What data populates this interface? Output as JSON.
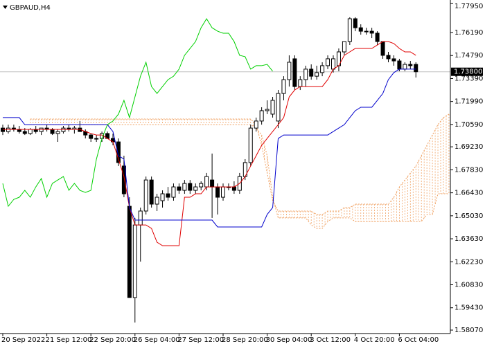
{
  "chart_data": {
    "type": "candlestick",
    "title": "GBPAUD,H4",
    "categories": [
      "20 Sep 2022",
      null,
      null,
      null,
      null,
      null,
      null,
      null,
      "21 Sep 12:00",
      null,
      null,
      null,
      null,
      null,
      null,
      null,
      "22 Sep 20:00",
      null,
      null,
      null,
      null,
      null,
      null,
      null,
      "26 Sep 04:00",
      null,
      null,
      null,
      null,
      null,
      null,
      null,
      "27 Sep 12:00",
      null,
      null,
      null,
      null,
      null,
      null,
      null,
      "28 Sep 20:00",
      null,
      null,
      null,
      null,
      null,
      null,
      null,
      "30 Sep 04:00",
      null,
      null,
      null,
      null,
      null,
      null,
      null,
      "3 Oct 12:00",
      null,
      null,
      null,
      null,
      null,
      null,
      null,
      "4 Oct 20:00",
      null,
      null,
      null,
      null,
      null,
      null,
      null,
      "6 Oct 04:00",
      null,
      null,
      null,
      null,
      null,
      null,
      null,
      null,
      null
    ],
    "open": [
      1.7037,
      1.7016,
      1.7037,
      1.7029,
      1.7016,
      1.7004,
      1.7029,
      1.7016,
      1.7037,
      1.7029,
      1.7004,
      1.7016,
      1.7037,
      1.7029,
      1.7037,
      1.7016,
      1.6995,
      1.6974,
      1.6974,
      1.7004,
      1.6974,
      1.6953,
      1.6806,
      1.6561,
      1.6005,
      1.6447,
      1.6532,
      1.6721,
      1.6574,
      1.6595,
      1.6637,
      1.6616,
      1.6679,
      1.6658,
      1.67,
      1.6658,
      1.6679,
      1.6679,
      1.6721,
      1.6679,
      1.6616,
      1.6679,
      1.6679,
      1.6658,
      1.6742,
      1.6827,
      1.7037,
      1.708,
      1.7143,
      1.7122,
      1.708,
      1.7248,
      1.7332,
      1.7459,
      1.729,
      1.7332,
      1.7396,
      1.7353,
      1.7375,
      1.7417,
      1.7396,
      1.7417,
      1.7501,
      1.7564,
      1.7703,
      1.7648,
      1.7627,
      1.7627,
      1.7615,
      1.7564,
      1.748,
      1.7459,
      1.7446,
      1.7396,
      1.7425,
      1.7425,
      null,
      null,
      null,
      null,
      null,
      null
    ],
    "high": [
      1.7058,
      1.7058,
      1.7058,
      1.705,
      1.7037,
      1.7037,
      1.705,
      1.7037,
      1.7058,
      1.7037,
      1.7029,
      1.705,
      1.7058,
      1.705,
      1.708,
      1.7029,
      1.7004,
      1.6995,
      1.7016,
      1.7016,
      1.7004,
      1.6974,
      1.6869,
      1.6616,
      1.649,
      1.6553,
      1.6742,
      1.6742,
      1.6637,
      1.6658,
      1.6679,
      1.67,
      1.67,
      1.6721,
      1.6721,
      1.67,
      1.6713,
      1.6764,
      1.6882,
      1.67,
      1.67,
      1.67,
      1.6713,
      1.6764,
      1.6848,
      1.7058,
      1.7101,
      1.7164,
      1.7206,
      1.7227,
      1.7269,
      1.7353,
      1.748,
      1.748,
      1.7353,
      1.7417,
      1.7425,
      1.7417,
      1.7438,
      1.748,
      1.748,
      1.7522,
      1.7564,
      1.7712,
      1.7712,
      1.7669,
      1.7648,
      1.7648,
      1.7627,
      1.7564,
      1.7501,
      1.748,
      1.7459,
      1.7438,
      1.7446,
      1.7438,
      null,
      null,
      null,
      null,
      null,
      null
    ],
    "low": [
      1.6995,
      1.7004,
      1.7016,
      1.7004,
      1.6995,
      1.6995,
      1.7004,
      1.6995,
      1.7016,
      1.6995,
      1.6953,
      1.7004,
      1.7016,
      1.7004,
      1.7016,
      1.6974,
      1.6953,
      1.6953,
      1.6953,
      1.6974,
      1.6932,
      1.6806,
      1.6616,
      1.6005,
      1.5853,
      1.6224,
      1.6511,
      1.6553,
      1.6532,
      1.6553,
      1.6595,
      1.6595,
      1.6637,
      1.6637,
      1.6637,
      1.6637,
      1.6658,
      1.6658,
      1.649,
      1.6511,
      1.6595,
      1.6658,
      1.6637,
      1.6637,
      1.6721,
      1.6806,
      1.7016,
      1.7058,
      1.7122,
      1.7101,
      1.7037,
      1.7206,
      1.729,
      1.7269,
      1.7269,
      1.729,
      1.7332,
      1.7332,
      1.7353,
      1.7396,
      1.7375,
      1.7383,
      1.748,
      1.7543,
      1.7627,
      1.7606,
      1.7606,
      1.7585,
      1.7543,
      1.7459,
      1.7438,
      1.7417,
      1.7383,
      1.7383,
      1.7396,
      1.7345,
      null,
      null,
      null,
      null,
      null,
      null
    ],
    "close": [
      1.7016,
      1.7037,
      1.7029,
      1.7016,
      1.7004,
      1.7029,
      1.7016,
      1.7037,
      1.7029,
      1.7004,
      1.7016,
      1.7037,
      1.7029,
      1.7037,
      1.7016,
      1.6995,
      1.6974,
      1.6974,
      1.7004,
      1.6974,
      1.6953,
      1.6827,
      1.6637,
      1.6005,
      1.6447,
      1.6532,
      1.6721,
      1.6574,
      1.6616,
      1.6637,
      1.6616,
      1.6679,
      1.6658,
      1.67,
      1.6658,
      1.6679,
      1.67,
      1.6742,
      1.6679,
      1.6616,
      1.6679,
      1.6679,
      1.6658,
      1.6742,
      1.6827,
      1.7037,
      1.708,
      1.7143,
      1.7151,
      1.7206,
      1.7248,
      1.7332,
      1.7438,
      1.729,
      1.7332,
      1.7396,
      1.7353,
      1.7375,
      1.7417,
      1.7459,
      1.7459,
      1.7501,
      1.7564,
      1.7703,
      1.7648,
      1.7627,
      1.7627,
      1.7615,
      1.7564,
      1.748,
      1.7459,
      1.7446,
      1.7396,
      1.7425,
      1.7417,
      1.738,
      null,
      null,
      null,
      null,
      null,
      null
    ],
    "up_color": "#ffffff",
    "down_color": "#000000",
    "candle_outline": "#000000",
    "series": [
      {
        "color": "#e00000",
        "values": [
          1.7029,
          1.7029,
          1.7029,
          1.7029,
          1.7029,
          1.7029,
          1.7029,
          1.7029,
          1.7029,
          1.7029,
          1.7029,
          1.7029,
          1.7029,
          1.7029,
          1.7029,
          1.7016,
          1.7004,
          1.6995,
          1.6995,
          1.6974,
          1.6953,
          1.6848,
          1.6742,
          1.6553,
          1.6447,
          1.6447,
          1.6447,
          1.6426,
          1.6342,
          1.6321,
          1.6321,
          1.6321,
          1.6321,
          1.6616,
          1.6616,
          1.6637,
          1.6637,
          1.6679,
          1.6679,
          1.6679,
          1.6679,
          1.6679,
          1.6679,
          1.67,
          1.6742,
          1.6806,
          1.6869,
          1.6932,
          1.6974,
          1.7016,
          1.7058,
          1.7101,
          1.7227,
          1.7269,
          1.729,
          1.729,
          1.729,
          1.729,
          1.729,
          1.7332,
          1.7396,
          1.7417,
          1.748,
          1.7501,
          1.7522,
          1.7522,
          1.7522,
          1.7522,
          1.7543,
          1.7564,
          1.7564,
          1.7552,
          1.7522,
          1.7501,
          1.7501,
          1.748,
          null,
          null,
          null,
          null,
          null,
          null
        ]
      },
      {
        "color": "#0000cc",
        "values": [
          1.7101,
          1.7101,
          1.7101,
          1.7101,
          1.7058,
          1.7058,
          1.7058,
          1.7058,
          1.7058,
          1.7058,
          1.7058,
          1.7058,
          1.7058,
          1.7058,
          1.7058,
          1.7058,
          1.7058,
          1.7058,
          1.7058,
          1.7058,
          1.7016,
          1.6869,
          1.6848,
          1.6553,
          1.6477,
          1.6477,
          1.6477,
          1.6477,
          1.6477,
          1.6477,
          1.6477,
          1.6477,
          1.6477,
          1.6477,
          1.6477,
          1.6477,
          1.6477,
          1.6477,
          1.6477,
          1.6435,
          1.6435,
          1.6435,
          1.6435,
          1.6435,
          1.6435,
          1.6435,
          1.6435,
          1.6435,
          1.6511,
          1.6553,
          1.6974,
          1.6995,
          1.6995,
          1.6995,
          1.6995,
          1.6995,
          1.6995,
          1.6995,
          1.6995,
          1.6995,
          1.7016,
          1.7037,
          1.7058,
          1.7101,
          1.7143,
          1.7164,
          1.7164,
          1.7164,
          1.7206,
          1.7248,
          1.7332,
          1.7375,
          1.7396,
          1.7396,
          1.7396,
          1.7396,
          null,
          null,
          null,
          null,
          null,
          null
        ]
      },
      {
        "color": "#00d000",
        "values": [
          1.67,
          1.6561,
          1.6603,
          1.6616,
          1.6658,
          1.6616,
          1.6679,
          1.673,
          1.6616,
          1.67,
          1.6721,
          1.6742,
          1.6658,
          1.67,
          1.6658,
          1.6645,
          1.6658,
          1.6848,
          1.6974,
          1.7058,
          1.708,
          1.7122,
          1.7206,
          1.7101,
          1.7227,
          1.7353,
          1.7438,
          1.729,
          1.7248,
          1.729,
          1.7332,
          1.7353,
          1.7396,
          1.748,
          1.7522,
          1.7564,
          1.7648,
          1.7703,
          1.7648,
          1.7627,
          1.7615,
          1.7615,
          1.7564,
          1.748,
          1.7472,
          1.7396,
          1.7417,
          1.7417,
          1.7425,
          1.7383,
          null,
          null,
          null,
          null,
          null,
          null,
          null,
          null,
          null,
          null,
          null,
          null,
          null,
          null,
          null,
          null,
          null,
          null,
          null,
          null,
          null,
          null,
          null,
          null,
          null,
          null,
          null,
          null,
          null,
          null,
          null,
          null
        ]
      }
    ],
    "cloud_color": "#f0a060",
    "cloud": [
      {
        "values": [
          null,
          null,
          null,
          null,
          null,
          1.7092,
          1.7092,
          1.7092,
          1.7092,
          1.7092,
          1.7092,
          1.7092,
          1.7092,
          1.7092,
          1.7092,
          1.7092,
          1.7092,
          1.7092,
          1.7092,
          1.7092,
          1.7092,
          1.7092,
          1.7092,
          1.7092,
          1.7092,
          1.7092,
          1.7092,
          1.7092,
          1.7092,
          1.7092,
          1.7092,
          1.7092,
          1.7092,
          1.7092,
          1.7092,
          1.7092,
          1.7092,
          1.7092,
          1.7092,
          1.7092,
          1.7092,
          1.7092,
          1.7092,
          1.7092,
          1.7092,
          1.7092,
          1.7058,
          1.6932,
          1.6764,
          1.6595,
          1.6532,
          1.6532,
          1.6532,
          1.6532,
          1.6532,
          1.6532,
          1.6532,
          1.6511,
          1.6511,
          1.6532,
          1.6532,
          1.6532,
          1.6553,
          1.6553,
          1.6574,
          1.6574,
          1.6574,
          1.6574,
          1.6574,
          1.6574,
          1.6574,
          1.6616,
          1.6679,
          1.6721,
          1.6764,
          1.6806,
          1.6869,
          1.6932,
          1.6995,
          1.7058,
          1.7101,
          1.7122
        ]
      },
      {
        "values": [
          null,
          null,
          null,
          null,
          null,
          1.7058,
          1.7058,
          1.7058,
          1.7058,
          1.7058,
          1.7058,
          1.7058,
          1.7058,
          1.7058,
          1.7058,
          1.7058,
          1.7058,
          1.7058,
          1.7058,
          1.7058,
          1.7058,
          1.7058,
          1.7058,
          1.7058,
          1.7058,
          1.7058,
          1.7058,
          1.7058,
          1.7058,
          1.7058,
          1.7058,
          1.7058,
          1.7058,
          1.7058,
          1.7058,
          1.7058,
          1.7058,
          1.7058,
          1.7058,
          1.7058,
          1.7058,
          1.7058,
          1.7058,
          1.7058,
          1.7058,
          1.7058,
          1.7037,
          1.6995,
          1.6869,
          1.6616,
          1.649,
          1.649,
          1.649,
          1.649,
          1.649,
          1.649,
          1.6447,
          1.6426,
          1.6426,
          1.6468,
          1.649,
          1.649,
          1.649,
          1.649,
          1.6468,
          1.6468,
          1.6468,
          1.6468,
          1.6468,
          1.6468,
          1.6468,
          1.6468,
          1.6468,
          1.6468,
          1.6468,
          1.6468,
          1.6468,
          1.6511,
          1.6511,
          1.6637,
          1.6637,
          1.6637
        ]
      }
    ],
    "last_price": {
      "value": 1.738,
      "label": "1.73800"
    },
    "ylim": [
      1.5786,
      1.7817
    ],
    "yticks": [
      {
        "value": 1.7795,
        "label": "1.77950"
      },
      {
        "value": 1.7619,
        "label": "1.76190"
      },
      {
        "value": 1.7479,
        "label": "1.74790"
      },
      {
        "value": 1.7339,
        "label": "1.73390"
      },
      {
        "value": 1.7199,
        "label": "1.71990"
      },
      {
        "value": 1.7059,
        "label": "1.70590"
      },
      {
        "value": 1.6923,
        "label": "1.69230"
      },
      {
        "value": 1.6783,
        "label": "1.67830"
      },
      {
        "value": 1.6643,
        "label": "1.66430"
      },
      {
        "value": 1.6503,
        "label": "1.65030"
      },
      {
        "value": 1.6363,
        "label": "1.63630"
      },
      {
        "value": 1.6223,
        "label": "1.62230"
      },
      {
        "value": 1.6083,
        "label": "1.60830"
      },
      {
        "value": 1.5943,
        "label": "1.59430"
      },
      {
        "value": 1.5807,
        "label": "1.58070"
      }
    ]
  }
}
